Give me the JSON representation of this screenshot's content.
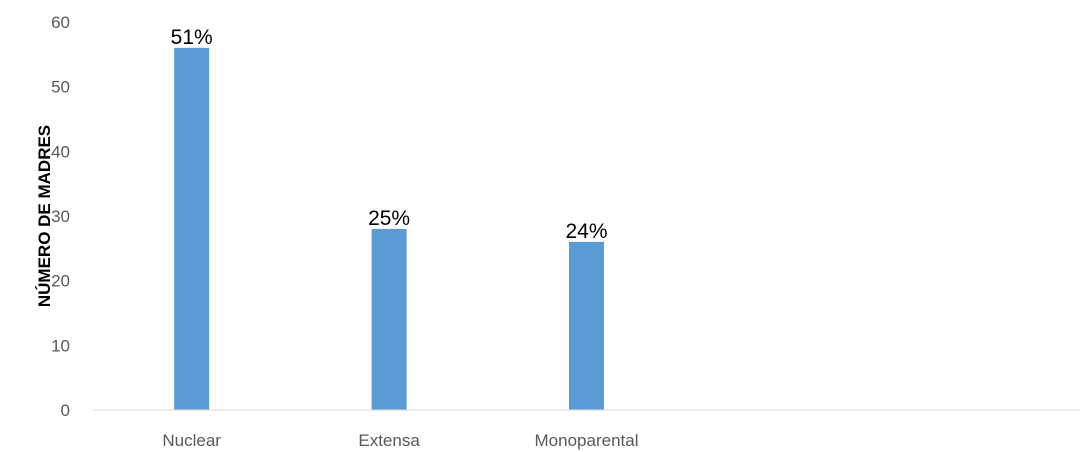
{
  "chart_data": {
    "type": "bar",
    "categories": [
      "Nuclear",
      "Extensa",
      "Monoparental",
      "",
      ""
    ],
    "values": [
      56,
      28,
      26,
      null,
      null
    ],
    "data_labels": [
      "51%",
      "25%",
      "24%",
      "",
      ""
    ],
    "title": "",
    "xlabel": "",
    "ylabel": "NÚMERO DE MADRES",
    "ylim": [
      0,
      60
    ],
    "yticks": [
      "0",
      "10",
      "20",
      "30",
      "40",
      "50",
      "60"
    ],
    "grid": false,
    "legend": "none",
    "colors": {
      "bar": "#5b9bd5",
      "axis": "#d9d9d9",
      "text": "#595959"
    }
  }
}
